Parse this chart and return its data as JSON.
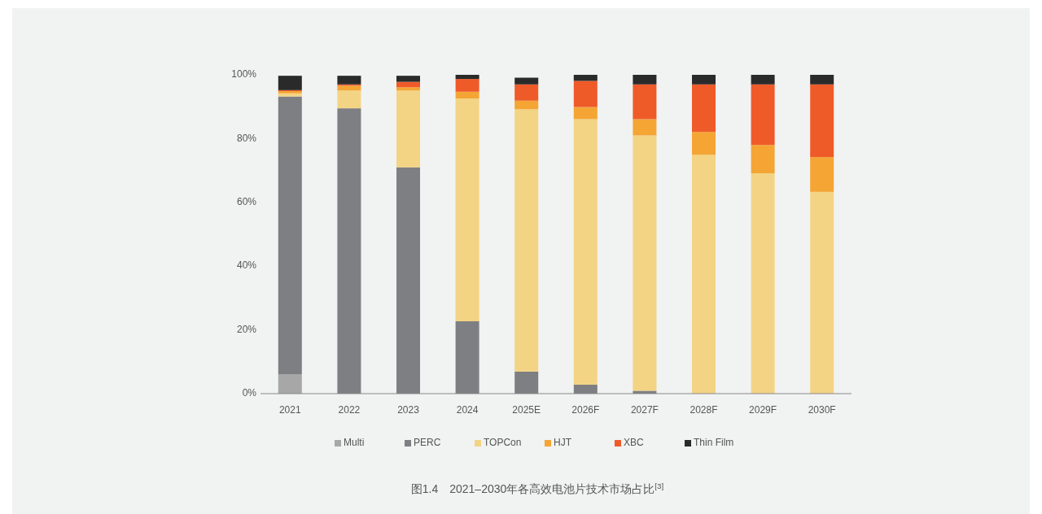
{
  "chart_data": {
    "type": "bar",
    "stacked": true,
    "legend": "bottom",
    "annotations": [
      "图1.4　2021–2030年各高效电池片技术市场占比$^{[3]}$"
    ],
    "categories": [
      "2021",
      "2022",
      "2023",
      "2024",
      "2025E",
      "2026F",
      "2027F",
      "2028F",
      "2029F",
      "2030F"
    ],
    "ylim": [
      0,
      100
    ],
    "yticks": [
      {
        "value": 0,
        "label": "0%"
      },
      {
        "value": 20,
        "label": "20%"
      },
      {
        "value": 40,
        "label": "40%"
      },
      {
        "value": 60,
        "label": "60%"
      },
      {
        "value": 80,
        "label": "80%"
      },
      {
        "value": 100,
        "label": "100%"
      }
    ],
    "series": [
      {
        "name": "Multi",
        "color": "#a7a7a8",
        "values": [
          6,
          null,
          0,
          0,
          0,
          0,
          0,
          0,
          0,
          0
        ]
      },
      {
        "name": "PERC",
        "color": "#7e7f82",
        "values": [
          87.2,
          89.5,
          71,
          22.7,
          6.9,
          2.8,
          0.9,
          0,
          0,
          0
        ]
      },
      {
        "name": "TOPCon",
        "color": "#f3d484",
        "values": [
          1.0,
          5.6,
          24.1,
          69.9,
          82.3,
          83.3,
          80.1,
          74.9,
          69.1,
          63.3
        ]
      },
      {
        "name": "HJT",
        "color": "#f4a534",
        "values": [
          0.7,
          1.5,
          1.0,
          2.1,
          2.7,
          3.8,
          5.1,
          7.2,
          8.9,
          10.9
        ]
      },
      {
        "name": "XBC",
        "color": "#ef5a29",
        "values": [
          0.3,
          0.4,
          1.7,
          4.0,
          5.1,
          8.2,
          10.9,
          14.9,
          19.0,
          22.8
        ]
      },
      {
        "name": "Thin Film",
        "color": "#2a2a2a",
        "values": [
          4.5,
          2.7,
          1.9,
          1.3,
          2.1,
          1.9,
          3.0,
          3.0,
          3.0,
          3.0
        ]
      }
    ]
  }
}
